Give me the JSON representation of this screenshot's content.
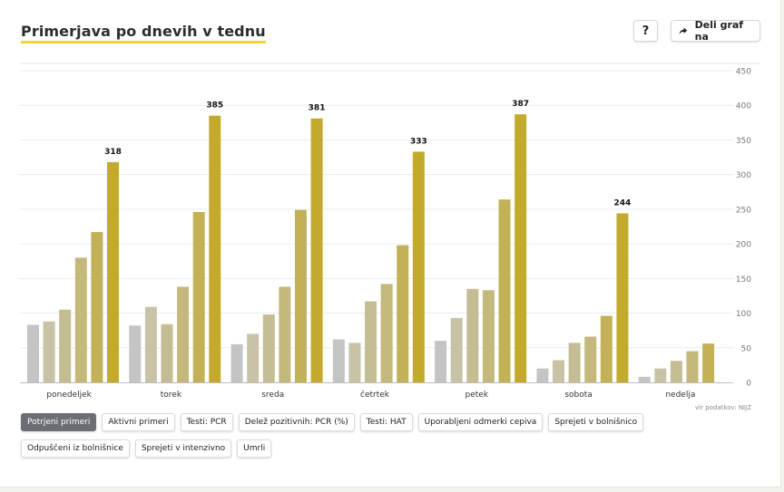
{
  "header": {
    "title": "Primerjava po dnevih v tednu",
    "help_label": "?",
    "share_label": "Deli graf na",
    "share_icon": "share-arrow-icon"
  },
  "source": "vir podatkov: NIJZ",
  "filters": [
    {
      "label": "Potrjeni primeri",
      "active": true
    },
    {
      "label": "Aktivni primeri",
      "active": false
    },
    {
      "label": "Testi: PCR",
      "active": false
    },
    {
      "label": "Delež pozitivnih: PCR (%)",
      "active": false
    },
    {
      "label": "Testi: HAT",
      "active": false
    },
    {
      "label": "Uporabljeni odmerki cepiva",
      "active": false
    },
    {
      "label": "Sprejeti v bolnišnico",
      "active": false
    },
    {
      "label": "Odpuščeni iz bolnišnice",
      "active": false
    },
    {
      "label": "Sprejeti v intenzivno",
      "active": false
    },
    {
      "label": "Umrli",
      "active": false
    }
  ],
  "chart_data": {
    "type": "bar",
    "title": "Primerjava po dnevih v tednu",
    "xlabel": "",
    "ylabel": "",
    "ylim": [
      0,
      450
    ],
    "yticks": [
      0,
      50,
      100,
      150,
      200,
      250,
      300,
      350,
      400,
      450
    ],
    "grid": true,
    "y_axis_side": "right",
    "categories": [
      "ponedeljek",
      "torek",
      "sreda",
      "četrtek",
      "petek",
      "sobota",
      "nedelja"
    ],
    "series_colors": [
      "#c4c4c4",
      "#c8c3a7",
      "#c4bc92",
      "#c4b87a",
      "#c2b157",
      "#c3aa2c"
    ],
    "series": [
      {
        "values": [
          83,
          82,
          55,
          62,
          60,
          20,
          8
        ]
      },
      {
        "values": [
          88,
          109,
          70,
          57,
          93,
          32,
          20
        ]
      },
      {
        "values": [
          105,
          84,
          98,
          117,
          135,
          57,
          31
        ]
      },
      {
        "values": [
          180,
          138,
          138,
          142,
          133,
          66,
          45
        ]
      },
      {
        "values": [
          217,
          246,
          249,
          198,
          264,
          96,
          56
        ]
      },
      {
        "values": [
          318,
          385,
          381,
          333,
          387,
          244,
          null
        ]
      }
    ],
    "data_labels": [
      "318",
      "385",
      "381",
      "333",
      "387",
      "244",
      ""
    ]
  }
}
